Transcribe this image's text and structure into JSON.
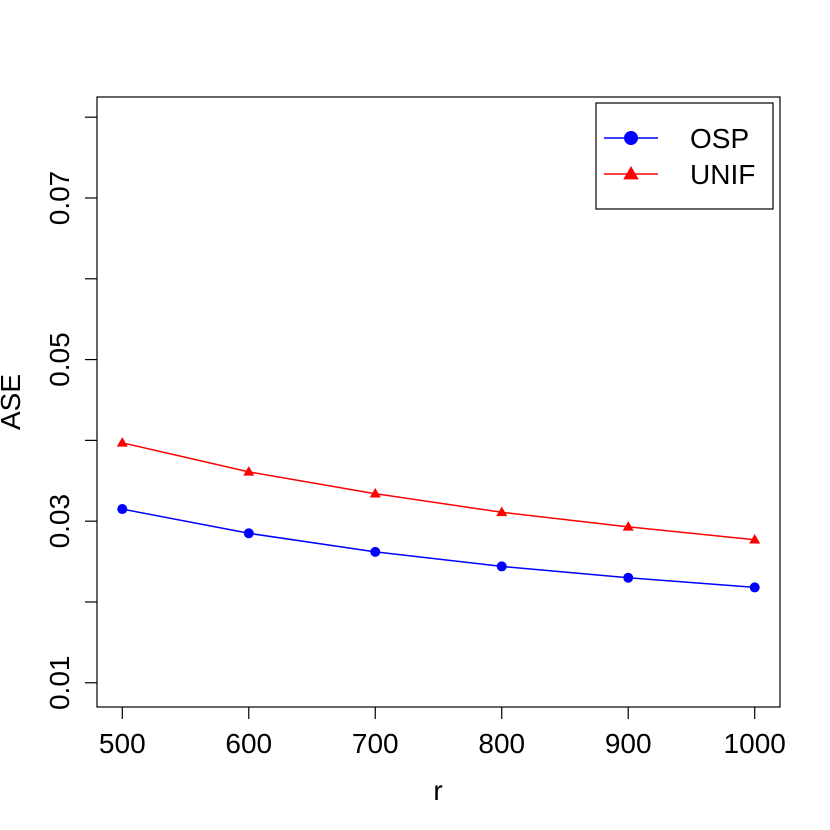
{
  "chart_data": {
    "type": "line",
    "title": "",
    "xlabel": "r",
    "ylabel": "ASE",
    "x": [
      500,
      600,
      700,
      800,
      900,
      1000
    ],
    "xlim": [
      480,
      1020
    ],
    "ylim": [
      0.007,
      0.0825
    ],
    "xticks": [
      500,
      600,
      700,
      800,
      900,
      1000
    ],
    "xtick_labels": [
      "500",
      "600",
      "700",
      "800",
      "900",
      "1000"
    ],
    "yticks": [
      0.01,
      0.02,
      0.03,
      0.04,
      0.05,
      0.06,
      0.07,
      0.08
    ],
    "ytick_labels": [
      "0.01",
      "",
      "0.03",
      "",
      "0.05",
      "",
      "0.07",
      ""
    ],
    "grid": false,
    "legend_position": "top-right",
    "series": [
      {
        "name": "OSP",
        "color": "#0000ff",
        "marker": "circle",
        "values": [
          0.0315,
          0.0285,
          0.0262,
          0.0244,
          0.023,
          0.0218
        ]
      },
      {
        "name": "UNIF",
        "color": "#ff0000",
        "marker": "triangle",
        "values": [
          0.0397,
          0.0361,
          0.0334,
          0.0311,
          0.0293,
          0.0277
        ]
      }
    ]
  }
}
